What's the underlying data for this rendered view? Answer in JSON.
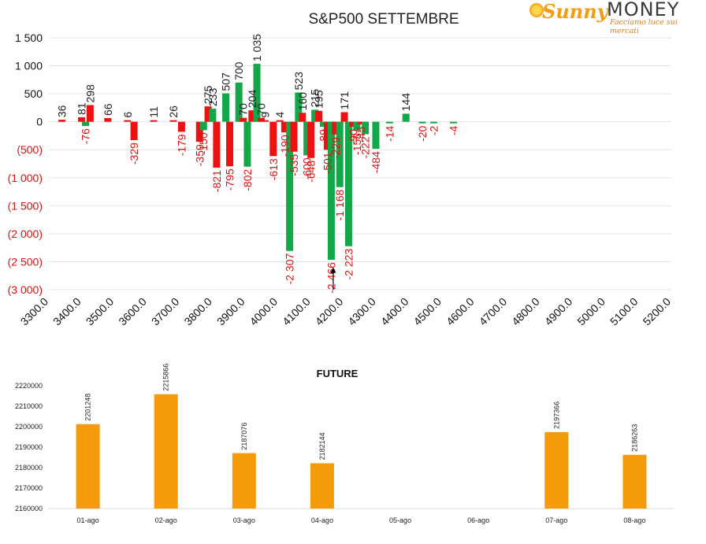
{
  "logo": {
    "brand_a": "Sunny",
    "brand_b": "MONEY",
    "tagline": "Facciamo luce sui mercati"
  },
  "chart_data": [
    {
      "type": "bar",
      "title": "S&P500 SETTEMBRE",
      "xlabel": "",
      "ylabel": "",
      "ylim": [
        -3000,
        1500
      ],
      "yticks": [
        {
          "value": 1500,
          "label": "1 500"
        },
        {
          "value": 1000,
          "label": "1 000"
        },
        {
          "value": 500,
          "label": "500"
        },
        {
          "value": 0,
          "label": "0"
        },
        {
          "value": -500,
          "label": "(500)"
        },
        {
          "value": -1000,
          "label": "(1 000)"
        },
        {
          "value": -1500,
          "label": "(1 500)"
        },
        {
          "value": -2000,
          "label": "(2 000)"
        },
        {
          "value": -2500,
          "label": "(2 500)"
        },
        {
          "value": -3000,
          "label": "(3 000)"
        }
      ],
      "xlim": [
        3300,
        5200
      ],
      "xticks": [
        "3300.0",
        "3400.0",
        "3500.0",
        "3600.0",
        "3700.0",
        "3800.0",
        "3900.0",
        "4000.0",
        "4100.0",
        "4200.0",
        "4300.0",
        "4400.0",
        "4500.0",
        "4600.0",
        "4700.0",
        "4800.0",
        "4900.0",
        "5000.0",
        "5100.0",
        "5200.0"
      ],
      "colors": {
        "red": "#ee1111",
        "green": "#12a84a",
        "neg_label": "#dd1111",
        "pos_label": "#222222"
      },
      "bars": [
        {
          "x": 3340,
          "value": 36,
          "label": "36",
          "color": "red"
        },
        {
          "x": 3400,
          "value": 81,
          "label": "81",
          "color": "red"
        },
        {
          "x": 3412,
          "value": -76,
          "label": "-76",
          "color": "green"
        },
        {
          "x": 3426,
          "value": 298,
          "label": "298",
          "color": "red"
        },
        {
          "x": 3480,
          "value": 66,
          "label": "66",
          "color": "red"
        },
        {
          "x": 3540,
          "value": 6,
          "label": "6",
          "color": "red"
        },
        {
          "x": 3560,
          "value": -329,
          "label": "-329",
          "color": "red"
        },
        {
          "x": 3620,
          "value": 11,
          "label": "11",
          "color": "red"
        },
        {
          "x": 3680,
          "value": 26,
          "label": "26",
          "color": "red"
        },
        {
          "x": 3705,
          "value": -179,
          "label": "-179",
          "color": "red"
        },
        {
          "x": 3760,
          "value": -359,
          "label": "-359",
          "color": "red"
        },
        {
          "x": 3772,
          "value": -150,
          "label": "-150",
          "color": "green"
        },
        {
          "x": 3786,
          "value": 275,
          "label": "275",
          "color": "red"
        },
        {
          "x": 3800,
          "value": 233,
          "label": "233",
          "color": "green"
        },
        {
          "x": 3812,
          "value": -821,
          "label": "-821",
          "color": "red"
        },
        {
          "x": 3840,
          "value": 507,
          "label": "507",
          "color": "green"
        },
        {
          "x": 3852,
          "value": -795,
          "label": "-795",
          "color": "red"
        },
        {
          "x": 3880,
          "value": 700,
          "label": "700",
          "color": "green"
        },
        {
          "x": 3893,
          "value": 70,
          "label": "70",
          "color": "red"
        },
        {
          "x": 3906,
          "value": -802,
          "label": "-802",
          "color": "green"
        },
        {
          "x": 3920,
          "value": 204,
          "label": "204",
          "color": "red"
        },
        {
          "x": 3935,
          "value": 1035,
          "label": "1 035",
          "color": "green"
        },
        {
          "x": 3948,
          "value": 70,
          "label": "70",
          "color": "red"
        },
        {
          "x": 3960,
          "value": 9,
          "label": "9",
          "color": "red"
        },
        {
          "x": 3985,
          "value": -613,
          "label": "-613",
          "color": "red"
        },
        {
          "x": 4005,
          "value": 4,
          "label": "4",
          "color": "red"
        },
        {
          "x": 4020,
          "value": -190,
          "label": "-190",
          "color": "red"
        },
        {
          "x": 4035,
          "value": -2307,
          "label": "-2 307",
          "color": "green"
        },
        {
          "x": 4048,
          "value": -535,
          "label": "-535",
          "color": "red"
        },
        {
          "x": 4062,
          "value": 523,
          "label": "523",
          "color": "green"
        },
        {
          "x": 4074,
          "value": 160,
          "label": "160",
          "color": "red"
        },
        {
          "x": 4088,
          "value": -600,
          "label": "-600",
          "color": "green"
        },
        {
          "x": 4100,
          "value": -648,
          "label": "-648",
          "color": "red"
        },
        {
          "x": 4112,
          "value": 215,
          "label": "215",
          "color": "green"
        },
        {
          "x": 4124,
          "value": 195,
          "label": "195",
          "color": "red"
        },
        {
          "x": 4138,
          "value": -89,
          "label": "-89",
          "color": "green"
        },
        {
          "x": 4150,
          "value": -501,
          "label": "-501",
          "color": "red"
        },
        {
          "x": 4162,
          "value": -2466,
          "label": "-2 466",
          "color": "green"
        },
        {
          "x": 4175,
          "value": -229,
          "label": "-229",
          "color": "red"
        },
        {
          "x": 4188,
          "value": -1168,
          "label": "-1 168",
          "color": "green"
        },
        {
          "x": 4202,
          "value": 171,
          "label": "171",
          "color": "red"
        },
        {
          "x": 4215,
          "value": -2223,
          "label": "-2 223",
          "color": "green"
        },
        {
          "x": 4228,
          "value": -90,
          "label": "-90",
          "color": "red"
        },
        {
          "x": 4240,
          "value": -158,
          "label": "-158",
          "color": "green"
        },
        {
          "x": 4253,
          "value": -45,
          "label": "-45",
          "color": "red"
        },
        {
          "x": 4266,
          "value": -222,
          "label": "-222",
          "color": "green"
        },
        {
          "x": 4298,
          "value": -484,
          "label": "-484",
          "color": "green"
        },
        {
          "x": 4340,
          "value": -14,
          "label": "-14",
          "color": "green"
        },
        {
          "x": 4390,
          "value": 144,
          "label": "144",
          "color": "green"
        },
        {
          "x": 4440,
          "value": -20,
          "label": "-20",
          "color": "green"
        },
        {
          "x": 4475,
          "value": -2,
          "label": "-2",
          "color": "green"
        },
        {
          "x": 4535,
          "value": -4,
          "label": "-4",
          "color": "green"
        }
      ],
      "marker": {
        "x": 4168,
        "from": -3000,
        "to": -2600
      }
    },
    {
      "type": "bar",
      "title": "FUTURE",
      "xlabel": "",
      "ylabel": "",
      "ylim": [
        2160000,
        2220000
      ],
      "yticks": [
        "2220000",
        "2210000",
        "2200000",
        "2190000",
        "2180000",
        "2170000",
        "2160000"
      ],
      "categories": [
        "01-ago",
        "02-ago",
        "03-ago",
        "04-ago",
        "05-ago",
        "06-ago",
        "07-ago",
        "08-ago"
      ],
      "values": [
        2201248,
        2215866,
        2187076,
        2182144,
        null,
        null,
        2197366,
        2186263
      ],
      "labels": [
        "2201248",
        "2215866",
        "2187076",
        "2182144",
        "",
        "",
        "2197366",
        "2186263"
      ],
      "color": "#f59b0a"
    }
  ]
}
